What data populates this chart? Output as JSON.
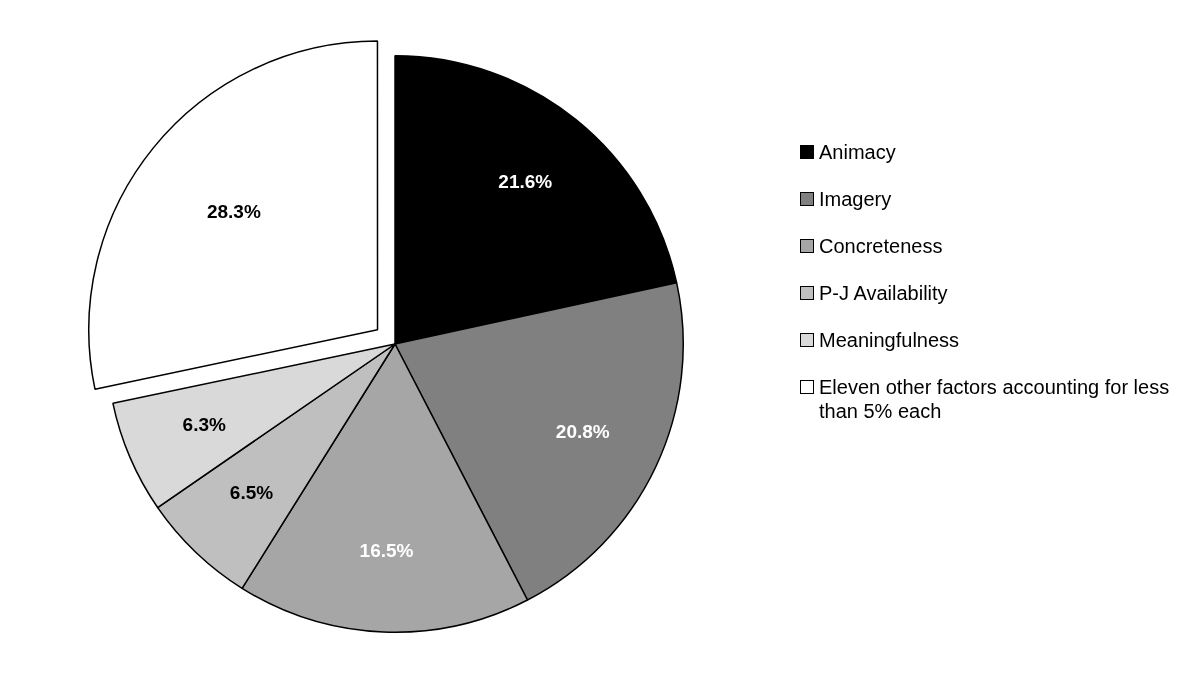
{
  "chart_data": {
    "type": "pie",
    "categories": [
      "Animacy",
      "Imagery",
      "Concreteness",
      "P-J Availability",
      "Meaningfulness",
      "Eleven other factors accounting for less than 5% each"
    ],
    "values": [
      21.6,
      20.8,
      16.5,
      6.5,
      6.3,
      28.3
    ],
    "colors": [
      "#000000",
      "#808080",
      "#a6a6a6",
      "#bfbfbf",
      "#d9d9d9",
      "#ffffff"
    ],
    "value_labels": [
      "21.6%",
      "20.8%",
      "16.5%",
      "6.5%",
      "6.3%",
      "28.3%"
    ],
    "legend": "right"
  }
}
